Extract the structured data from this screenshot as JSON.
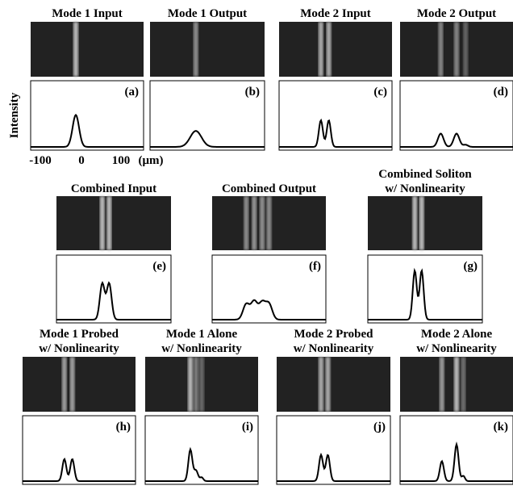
{
  "y_axis_label": "Intensity",
  "x_ticks": [
    "-100",
    "0",
    "100",
    "(μm)"
  ],
  "panels": [
    {
      "title": [
        "Mode 1 Input"
      ],
      "label": "(a)"
    },
    {
      "title": [
        "Mode 1 Output"
      ],
      "label": "(b)"
    },
    {
      "title": [
        "Mode 2 Input"
      ],
      "label": "(c)"
    },
    {
      "title": [
        "Mode 2 Output"
      ],
      "label": "(d)"
    },
    {
      "title": [
        "Combined Input"
      ],
      "label": "(e)"
    },
    {
      "title": [
        "Combined Output"
      ],
      "label": "(f)"
    },
    {
      "title": [
        "Combined Soliton",
        "w/ Nonlinearity"
      ],
      "label": "(g)"
    },
    {
      "title": [
        "Mode 1 Probed",
        "w/ Nonlinearity"
      ],
      "label": "(h)"
    },
    {
      "title": [
        "Mode 1 Alone",
        "w/ Nonlinearity"
      ],
      "label": "(i)"
    },
    {
      "title": [
        "Mode 2 Probed",
        "w/ Nonlinearity"
      ],
      "label": "(j)"
    },
    {
      "title": [
        "Mode 2 Alone",
        "w/ Nonlinearity"
      ],
      "label": "(k)"
    }
  ]
}
